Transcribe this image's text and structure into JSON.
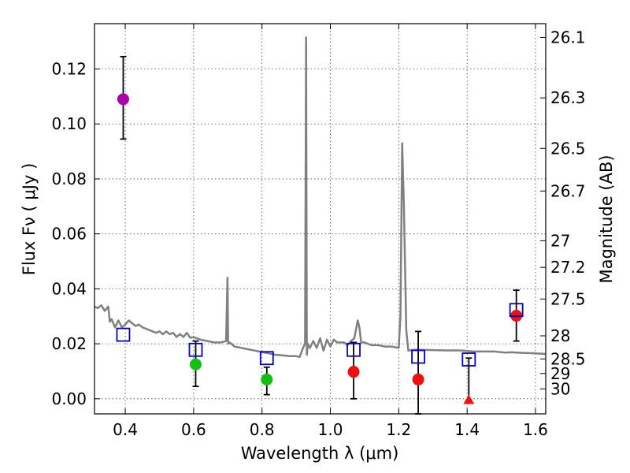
{
  "chart_data": {
    "type": "scatter",
    "title": "",
    "xlabel": "Wavelength  λ (μm)",
    "ylabel": "Flux  Fν  ( μJy )",
    "y2label": "Magnitude (AB)",
    "xlim": [
      0.31,
      1.63
    ],
    "ylim": [
      -0.0055,
      0.1365
    ],
    "xticks": [
      0.4,
      0.6,
      0.8,
      1.0,
      1.2,
      1.4,
      1.6
    ],
    "xtick_labels": [
      "0.4",
      "0.6",
      "0.8",
      "1.0",
      "1.2",
      "1.4",
      "1.6"
    ],
    "yticks": [
      0.0,
      0.02,
      0.04,
      0.06,
      0.08,
      0.1,
      0.12
    ],
    "ytick_labels": [
      "0.00",
      "0.02",
      "0.04",
      "0.06",
      "0.08",
      "0.10",
      "0.12"
    ],
    "magnitude_ticks": [
      {
        "label": "26.1",
        "flux": 0.1315
      },
      {
        "label": "26.3",
        "flux": 0.1095
      },
      {
        "label": "26.5",
        "flux": 0.0911
      },
      {
        "label": "26.7",
        "flux": 0.0756
      },
      {
        "label": "27",
        "flux": 0.0575
      },
      {
        "label": "27.2",
        "flux": 0.0478
      },
      {
        "label": "27.5",
        "flux": 0.0363
      },
      {
        "label": "28",
        "flux": 0.0229
      },
      {
        "label": "28.5",
        "flux": 0.0145
      },
      {
        "label": "29",
        "flux": 0.0092
      },
      {
        "label": "30",
        "flux": 0.0036
      }
    ],
    "grid": true,
    "colors": {
      "sed": "#808080",
      "magenta": "#aa00aa",
      "green": "#11c011",
      "red": "#ee1111",
      "model_box": "#0000cc",
      "errorbar": "#000000"
    },
    "sed_curve": {
      "name": "best-fit SED",
      "x": [
        0.31,
        0.32,
        0.33,
        0.34,
        0.35,
        0.355,
        0.36,
        0.37,
        0.38,
        0.39,
        0.4,
        0.41,
        0.42,
        0.43,
        0.44,
        0.45,
        0.46,
        0.47,
        0.48,
        0.49,
        0.5,
        0.51,
        0.52,
        0.53,
        0.54,
        0.55,
        0.56,
        0.57,
        0.58,
        0.59,
        0.6,
        0.62,
        0.64,
        0.66,
        0.68,
        0.695,
        0.699,
        0.701,
        0.705,
        0.72,
        0.74,
        0.76,
        0.78,
        0.8,
        0.82,
        0.84,
        0.86,
        0.88,
        0.9,
        0.91,
        0.92,
        0.926,
        0.929,
        0.931,
        0.934,
        0.94,
        0.95,
        0.96,
        0.97,
        0.98,
        0.99,
        1.0,
        1.01,
        1.02,
        1.04,
        1.05,
        1.06,
        1.07,
        1.08,
        1.085,
        1.09,
        1.1,
        1.12,
        1.14,
        1.16,
        1.18,
        1.2,
        1.205,
        1.21,
        1.215,
        1.222,
        1.228,
        1.24,
        1.26,
        1.3,
        1.34,
        1.38,
        1.42,
        1.45,
        1.48,
        1.51,
        1.53,
        1.56,
        1.59,
        1.62,
        1.63
      ],
      "y": [
        0.0335,
        0.033,
        0.034,
        0.032,
        0.0335,
        0.028,
        0.029,
        0.026,
        0.0285,
        0.026,
        0.027,
        0.0285,
        0.0275,
        0.0265,
        0.027,
        0.026,
        0.0255,
        0.025,
        0.0245,
        0.024,
        0.0245,
        0.0235,
        0.0245,
        0.0235,
        0.024,
        0.0225,
        0.0235,
        0.0225,
        0.024,
        0.0222,
        0.0224,
        0.0215,
        0.021,
        0.0205,
        0.0205,
        0.021,
        0.044,
        0.02,
        0.0205,
        0.019,
        0.0185,
        0.018,
        0.0175,
        0.017,
        0.0165,
        0.016,
        0.0158,
        0.0155,
        0.0155,
        0.0152,
        0.0185,
        0.02,
        0.1315,
        0.016,
        0.02,
        0.0185,
        0.021,
        0.0185,
        0.022,
        0.0175,
        0.0215,
        0.019,
        0.0215,
        0.0205,
        0.0205,
        0.0195,
        0.021,
        0.022,
        0.0285,
        0.026,
        0.0205,
        0.0205,
        0.0195,
        0.0195,
        0.019,
        0.019,
        0.0185,
        0.03,
        0.093,
        0.07,
        0.025,
        0.0175,
        0.0178,
        0.0178,
        0.0177,
        0.0176,
        0.0176,
        0.0172,
        0.0172,
        0.0172,
        0.0168,
        0.0169,
        0.0167,
        0.0166,
        0.0164,
        0.0163
      ]
    },
    "series": [
      {
        "name": "magenta point",
        "marker": "circle",
        "color": "magenta",
        "points": [
          {
            "x": 0.394,
            "y": 0.109,
            "ylo": 0.0945,
            "yhi": 0.1245
          }
        ]
      },
      {
        "name": "green points",
        "marker": "circle",
        "color": "green",
        "points": [
          {
            "x": 0.606,
            "y": 0.0125,
            "ylo": 0.0045,
            "yhi": 0.021
          },
          {
            "x": 0.814,
            "y": 0.007,
            "ylo": 0.0015,
            "yhi": 0.0115
          }
        ]
      },
      {
        "name": "red points",
        "marker": "circle",
        "color": "red",
        "points": [
          {
            "x": 1.068,
            "y": 0.0098,
            "ylo": 0.0,
            "yhi": 0.0205
          },
          {
            "x": 1.257,
            "y": 0.007,
            "ylo": -0.0055,
            "yhi": 0.0245
          },
          {
            "x": 1.544,
            "y": 0.0302,
            "ylo": 0.021,
            "yhi": 0.0395
          }
        ]
      },
      {
        "name": "red upper limit",
        "marker": "triangle",
        "color": "red",
        "points": [
          {
            "x": 1.405,
            "y": -0.0005,
            "ylo": -0.0005,
            "yhi": 0.0148
          }
        ]
      },
      {
        "name": "model photometry",
        "marker": "open-square",
        "color": "model_box",
        "points": [
          {
            "x": 0.394,
            "y": 0.0233
          },
          {
            "x": 0.606,
            "y": 0.0178
          },
          {
            "x": 0.814,
            "y": 0.0148
          },
          {
            "x": 1.068,
            "y": 0.0178
          },
          {
            "x": 1.257,
            "y": 0.0153
          },
          {
            "x": 1.405,
            "y": 0.0143
          },
          {
            "x": 1.544,
            "y": 0.0323
          }
        ]
      }
    ]
  }
}
